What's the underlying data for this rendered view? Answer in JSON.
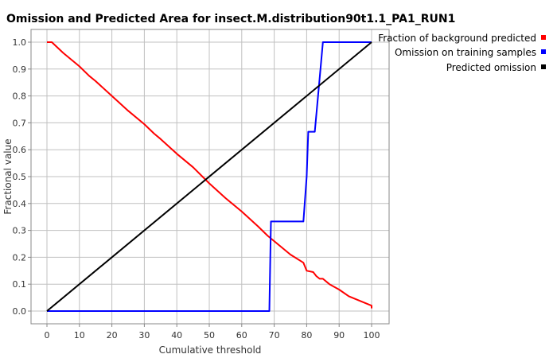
{
  "chart_data": {
    "type": "line",
    "title": "Omission and Predicted Area for insect.M.distribution90t1.1_PA1_RUN1",
    "xlabel": "Cumulative threshold",
    "ylabel": "Fractional value",
    "xlim": [
      0,
      100
    ],
    "ylim": [
      0,
      1
    ],
    "x_ticks": [
      "0",
      "10",
      "20",
      "30",
      "40",
      "50",
      "60",
      "70",
      "80",
      "90",
      "100"
    ],
    "y_ticks": [
      "0.0",
      "0.1",
      "0.2",
      "0.3",
      "0.4",
      "0.5",
      "0.6",
      "0.7",
      "0.8",
      "0.9",
      "1.0"
    ],
    "grid": true,
    "legend_position": "right",
    "series": [
      {
        "name": "Fraction of background predicted",
        "color": "#ff0000",
        "points": [
          [
            0,
            1.0
          ],
          [
            1.5,
            1.0
          ],
          [
            5,
            0.96
          ],
          [
            10,
            0.91
          ],
          [
            13,
            0.875
          ],
          [
            15,
            0.855
          ],
          [
            20,
            0.8
          ],
          [
            25,
            0.745
          ],
          [
            30,
            0.695
          ],
          [
            33,
            0.66
          ],
          [
            35,
            0.64
          ],
          [
            40,
            0.585
          ],
          [
            45,
            0.535
          ],
          [
            50,
            0.475
          ],
          [
            55,
            0.42
          ],
          [
            60,
            0.37
          ],
          [
            65,
            0.315
          ],
          [
            68,
            0.28
          ],
          [
            70,
            0.26
          ],
          [
            75,
            0.21
          ],
          [
            79,
            0.18
          ],
          [
            80,
            0.15
          ],
          [
            82,
            0.145
          ],
          [
            83,
            0.13
          ],
          [
            84,
            0.12
          ],
          [
            85,
            0.12
          ],
          [
            87,
            0.1
          ],
          [
            90,
            0.08
          ],
          [
            93,
            0.055
          ],
          [
            95,
            0.045
          ],
          [
            97,
            0.035
          ],
          [
            100,
            0.02
          ],
          [
            100,
            0.01
          ]
        ]
      },
      {
        "name": "Omission on training samples",
        "color": "#0000ff",
        "points": [
          [
            0,
            0.0
          ],
          [
            68.5,
            0.0
          ],
          [
            69,
            0.333
          ],
          [
            79,
            0.333
          ],
          [
            80,
            0.5
          ],
          [
            80.5,
            0.667
          ],
          [
            82.5,
            0.667
          ],
          [
            83.5,
            0.8
          ],
          [
            85,
            1.0
          ],
          [
            100,
            1.0
          ]
        ]
      },
      {
        "name": "Predicted omission",
        "color": "#000000",
        "points": [
          [
            0,
            0.0
          ],
          [
            100,
            1.0
          ]
        ]
      }
    ]
  }
}
